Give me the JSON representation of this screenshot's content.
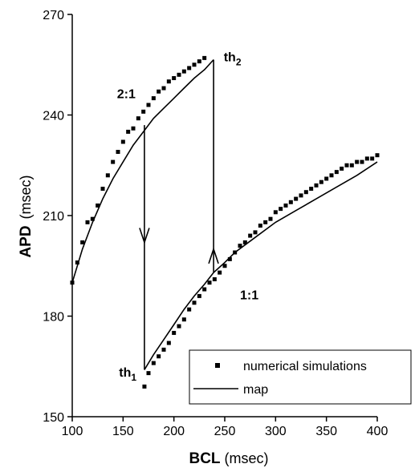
{
  "chart_data": {
    "type": "scatter",
    "xlabel": "BCL",
    "xunit": "(msec)",
    "ylabel": "APD",
    "yunit": "(msec)",
    "xlim": [
      100,
      400
    ],
    "ylim": [
      150,
      270
    ],
    "xticks": [
      100,
      150,
      200,
      250,
      300,
      350,
      400
    ],
    "yticks": [
      150,
      180,
      210,
      240,
      270
    ],
    "legend": {
      "position": "bottom-right",
      "entries": [
        {
          "label": "numerical simulations",
          "symbol": "square"
        },
        {
          "label": "map",
          "symbol": "line"
        }
      ]
    },
    "series": [
      {
        "name": "numerical simulations",
        "kind": "scatter",
        "points": [
          [
            100,
            190
          ],
          [
            105,
            196
          ],
          [
            110,
            202
          ],
          [
            115,
            208
          ],
          [
            120,
            209
          ],
          [
            125,
            213
          ],
          [
            130,
            218
          ],
          [
            135,
            222
          ],
          [
            140,
            226
          ],
          [
            145,
            229
          ],
          [
            150,
            232
          ],
          [
            155,
            235
          ],
          [
            160,
            236
          ],
          [
            165,
            239
          ],
          [
            170,
            241
          ],
          [
            175,
            243
          ],
          [
            180,
            245
          ],
          [
            185,
            247
          ],
          [
            190,
            248
          ],
          [
            195,
            250
          ],
          [
            200,
            251
          ],
          [
            205,
            252
          ],
          [
            210,
            253
          ],
          [
            215,
            254
          ],
          [
            220,
            255
          ],
          [
            225,
            256
          ],
          [
            230,
            257
          ],
          [
            171,
            159
          ],
          [
            175,
            163
          ],
          [
            180,
            166
          ],
          [
            185,
            168
          ],
          [
            190,
            170
          ],
          [
            195,
            172
          ],
          [
            200,
            175
          ],
          [
            205,
            177
          ],
          [
            210,
            179
          ],
          [
            215,
            182
          ],
          [
            220,
            184
          ],
          [
            225,
            186
          ],
          [
            230,
            188
          ],
          [
            235,
            190
          ],
          [
            240,
            191
          ],
          [
            245,
            193
          ],
          [
            250,
            195
          ],
          [
            255,
            197
          ],
          [
            260,
            199
          ],
          [
            265,
            201
          ],
          [
            270,
            202
          ],
          [
            275,
            204
          ],
          [
            280,
            205
          ],
          [
            285,
            207
          ],
          [
            290,
            208
          ],
          [
            295,
            209
          ],
          [
            300,
            211
          ],
          [
            305,
            212
          ],
          [
            310,
            213
          ],
          [
            315,
            214
          ],
          [
            320,
            215
          ],
          [
            325,
            216
          ],
          [
            330,
            217
          ],
          [
            335,
            218
          ],
          [
            340,
            219
          ],
          [
            345,
            220
          ],
          [
            350,
            221
          ],
          [
            355,
            222
          ],
          [
            360,
            223
          ],
          [
            365,
            224
          ],
          [
            370,
            225
          ],
          [
            375,
            225
          ],
          [
            380,
            226
          ],
          [
            385,
            226
          ],
          [
            390,
            227
          ],
          [
            395,
            227
          ],
          [
            400,
            228
          ]
        ]
      },
      {
        "name": "map",
        "kind": "line",
        "segments": [
          [
            [
              100,
              190
            ],
            [
              110,
              200
            ],
            [
              120,
              208
            ],
            [
              130,
              215
            ],
            [
              140,
              221
            ],
            [
              150,
              226
            ],
            [
              160,
              231
            ],
            [
              170,
              235
            ],
            [
              180,
              239
            ],
            [
              190,
              242
            ],
            [
              200,
              245
            ],
            [
              210,
              248
            ],
            [
              220,
              251
            ],
            [
              230,
              253.5
            ],
            [
              239,
              256.5
            ]
          ],
          [
            [
              239,
              256.5
            ],
            [
              239,
              193
            ]
          ],
          [
            [
              239,
              193
            ],
            [
              250,
              196
            ],
            [
              260,
              199
            ],
            [
              280,
              203.5
            ],
            [
              300,
              208
            ],
            [
              320,
              211.5
            ],
            [
              340,
              215
            ],
            [
              360,
              218.5
            ],
            [
              380,
              222
            ],
            [
              400,
              226
            ]
          ],
          [
            [
              239,
              193
            ],
            [
              230,
              189.5
            ],
            [
              220,
              186
            ],
            [
              210,
              182
            ],
            [
              200,
              177.5
            ],
            [
              190,
              173
            ],
            [
              180,
              168.5
            ],
            [
              171,
              164
            ]
          ],
          [
            [
              171,
              164
            ],
            [
              171,
              237
            ]
          ]
        ],
        "arrows": [
          {
            "x": 239,
            "y": 200,
            "direction": "down"
          },
          {
            "x": 171,
            "y": 202,
            "direction": "up"
          }
        ]
      }
    ],
    "annotations": [
      {
        "text": "2:1",
        "x": 144,
        "y": 245
      },
      {
        "text": "th",
        "sub": "2",
        "x": 249,
        "y": 256
      },
      {
        "text": "1:1",
        "x": 265,
        "y": 185
      },
      {
        "text": "th",
        "sub": "1",
        "x": 146,
        "y": 162
      }
    ]
  }
}
